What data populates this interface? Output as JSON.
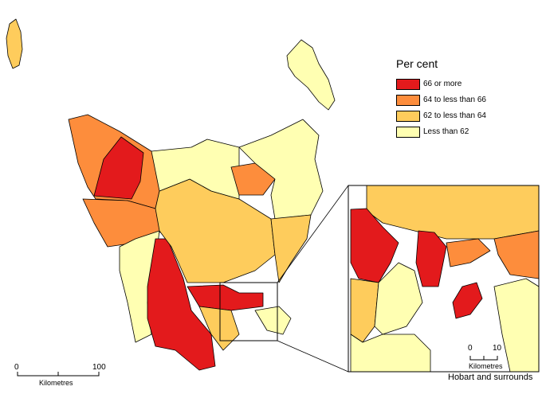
{
  "legend": {
    "title": "Per cent",
    "items": [
      {
        "label": "66 or more",
        "color": "#e31a1c"
      },
      {
        "label": "64 to less than 66",
        "color": "#fd8d3c"
      },
      {
        "label": "62 to less than 64",
        "color": "#fecc5c"
      },
      {
        "label": "Less than 62",
        "color": "#ffffb2"
      }
    ]
  },
  "main_scale": {
    "start": "0",
    "end": "100",
    "unit": "Kilometres"
  },
  "inset": {
    "caption": "Hobart and surrounds",
    "scale_start": "0",
    "scale_end": "10",
    "scale_unit": "Kilometres"
  }
}
